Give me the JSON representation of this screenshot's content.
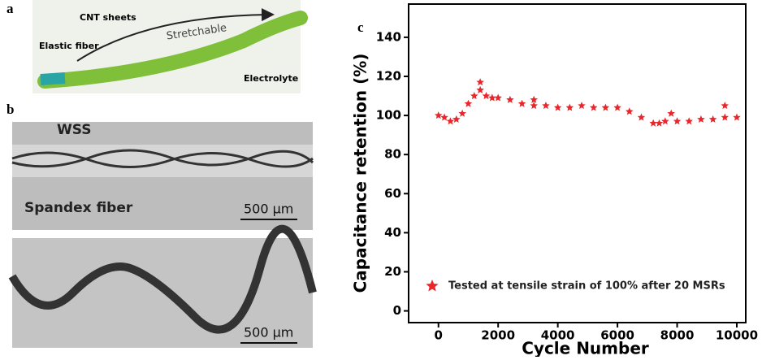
{
  "panels": {
    "a": {
      "label": "a",
      "cnt": "CNT sheets",
      "elastic": "Elastic fiber",
      "stretch": "Stretchable",
      "electrolyte": "Electrolyte"
    },
    "b": {
      "label": "b",
      "wss": "WSS",
      "spandex": "Spandex fiber",
      "scale_top": "500 μm",
      "scale_bottom": "500 μm"
    },
    "c": {
      "label": "c"
    }
  },
  "chart_data": {
    "type": "scatter",
    "xlabel": "Cycle Number",
    "ylabel": "Capacitance retention (%)",
    "x": [
      0,
      200,
      400,
      600,
      800,
      1000,
      1200,
      1400,
      1400,
      1600,
      1800,
      2000,
      2400,
      2800,
      3200,
      3200,
      3600,
      4000,
      4400,
      4800,
      5200,
      5600,
      6000,
      6400,
      6800,
      7200,
      7400,
      7600,
      7800,
      8000,
      8400,
      8800,
      9200,
      9600,
      9600,
      10000
    ],
    "series": [
      {
        "name": "Tested at tensile strain of 100% after 20 MSRs",
        "color": "#e8262b",
        "values": [
          100,
          99,
          97,
          98,
          101,
          106,
          110,
          113,
          117,
          110,
          109,
          109,
          108,
          106,
          105,
          108,
          105,
          104,
          104,
          105,
          104,
          104,
          104,
          102,
          99,
          96,
          96,
          97,
          101,
          97,
          97,
          98,
          98,
          99,
          105,
          99
        ]
      }
    ],
    "xlim": [
      -1000,
      10300
    ],
    "ylim": [
      -6,
      157
    ],
    "xticks": [
      0,
      2000,
      4000,
      6000,
      8000,
      10000
    ],
    "yticks": [
      0,
      20,
      40,
      60,
      80,
      100,
      120,
      140
    ]
  }
}
